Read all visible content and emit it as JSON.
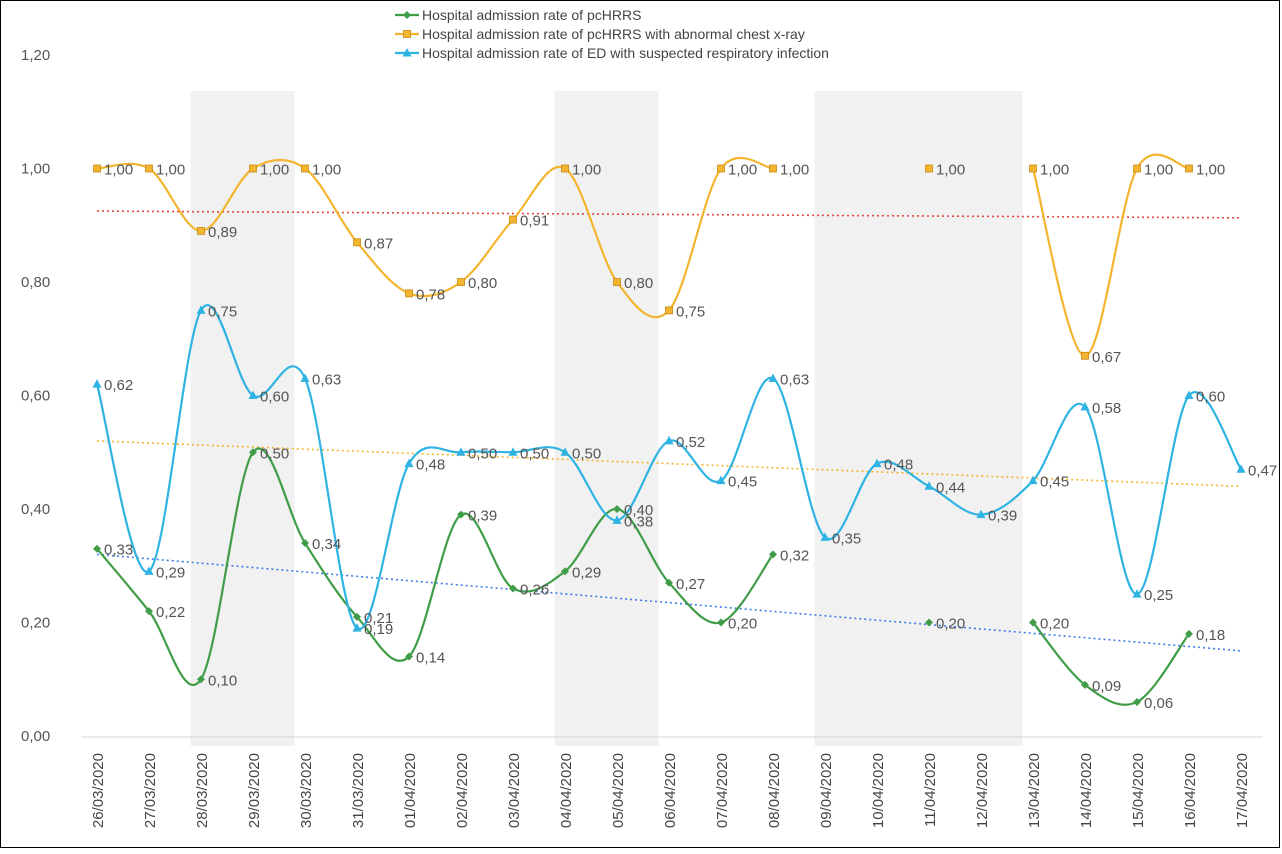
{
  "chart_data": {
    "type": "line",
    "title": "",
    "xlabel": "",
    "ylabel": "",
    "ylim": [
      0,
      1.2
    ],
    "yticks": [
      "0,00",
      "0,20",
      "0,40",
      "0,60",
      "0,80",
      "1,00",
      "1,20"
    ],
    "grid": false,
    "legend_position": "top-center",
    "weekend_bands": [
      [
        "28/03/2020",
        "29/03/2020"
      ],
      [
        "04/04/2020",
        "05/04/2020"
      ],
      [
        "09/04/2020",
        "12/04/2020"
      ]
    ],
    "categories": [
      "26/03/2020",
      "27/03/2020",
      "28/03/2020",
      "29/03/2020",
      "30/03/2020",
      "31/03/2020",
      "01/04/2020",
      "02/04/2020",
      "03/04/2020",
      "04/04/2020",
      "05/04/2020",
      "06/04/2020",
      "07/04/2020",
      "08/04/2020",
      "09/04/2020",
      "10/04/2020",
      "11/04/2020",
      "12/04/2020",
      "13/04/2020",
      "14/04/2020",
      "15/04/2020",
      "16/04/2020",
      "17/04/2020"
    ],
    "series": [
      {
        "name": "Hospital admission rate of pcHRRS",
        "color": "#3f9d47",
        "values": [
          0.33,
          0.22,
          0.1,
          0.5,
          0.34,
          0.21,
          0.14,
          0.39,
          0.26,
          0.29,
          0.4,
          0.27,
          0.2,
          0.32,
          null,
          null,
          0.2,
          null,
          0.2,
          0.09,
          0.06,
          0.18,
          null
        ],
        "labels": [
          "0,33",
          "0,22",
          "0,10",
          "0,50",
          "0,34",
          "0,21",
          "0,14",
          "0,39",
          "0,26",
          "0,29",
          "0,40",
          "0,27",
          "0,20",
          "0,32",
          null,
          null,
          "0,20",
          null,
          "0,20",
          "0,09",
          "0,06",
          "0,18",
          null
        ]
      },
      {
        "name": "Hospital admission rate of pcHRRS with abnormal chest x-ray",
        "color": "#f3b52f",
        "values": [
          1.0,
          1.0,
          0.89,
          1.0,
          1.0,
          0.87,
          0.78,
          0.8,
          0.91,
          1.0,
          0.8,
          0.75,
          1.0,
          1.0,
          null,
          null,
          1.0,
          null,
          1.0,
          0.67,
          1.0,
          1.0,
          null
        ],
        "labels": [
          "1,00",
          "1,00",
          "0,89",
          "1,00",
          "1,00",
          "0,87",
          "0,78",
          "0,80",
          "0,91",
          "1,00",
          "0,80",
          "0,75",
          "1,00",
          "1,00",
          null,
          null,
          "1,00",
          null,
          "1,00",
          "0,67",
          "1,00",
          "1,00",
          null
        ]
      },
      {
        "name": "Hospital admission rate of ED with suspected respiratory infection",
        "color": "#2eb3e2",
        "values": [
          0.62,
          0.29,
          0.75,
          0.6,
          0.63,
          0.19,
          0.48,
          0.5,
          0.5,
          0.5,
          0.38,
          0.52,
          0.45,
          0.63,
          0.35,
          0.48,
          0.44,
          0.39,
          0.45,
          0.58,
          0.25,
          0.6,
          0.47
        ],
        "labels": [
          "0,62",
          "0,29",
          "0,75",
          "0,60",
          "0,63",
          "0,19",
          "0,48",
          "0,50",
          "0,50",
          "0,50",
          "0,38",
          "0,52",
          "0,45",
          "0,63",
          "0,35",
          "0,48",
          "0,44",
          "0,39",
          "0,45",
          "0,58",
          "0,25",
          "0,60",
          "0,47"
        ]
      }
    ],
    "trendlines": [
      {
        "color": "#e8463c",
        "start": 0.925,
        "end": 0.913
      },
      {
        "color": "#f3b52f",
        "start": 0.52,
        "end": 0.44
      },
      {
        "color": "#3e7ee8",
        "start": 0.32,
        "end": 0.15
      }
    ]
  }
}
